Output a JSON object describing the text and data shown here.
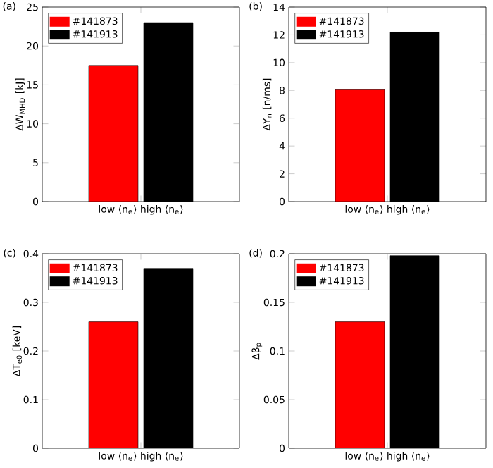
{
  "chart_data": [
    {
      "type": "bar",
      "title": "(a)",
      "ylabel": "ΔW$_{MHD}$ [kJ]",
      "categories": [
        "low ⟨n$_{e}$⟩ high ⟨n$_{e}$⟩"
      ],
      "ylim": [
        0,
        25
      ],
      "yticks": [
        0,
        5,
        10,
        15,
        20,
        25
      ],
      "legend": "top left",
      "series": [
        {
          "name": "#141873",
          "color": "#ff0000",
          "values": [
            17.5
          ]
        },
        {
          "name": "#141913",
          "color": "#000000",
          "values": [
            23
          ]
        }
      ]
    },
    {
      "type": "bar",
      "title": "(b)",
      "ylabel": "ΔY$_{n}$ [n/ms]",
      "categories": [
        "low ⟨n$_{e}$⟩ high ⟨n$_{e}$⟩"
      ],
      "ylim": [
        0,
        14
      ],
      "yticks": [
        0,
        2,
        4,
        6,
        8,
        10,
        12,
        14
      ],
      "legend": "top left",
      "series": [
        {
          "name": "#141873",
          "color": "#ff0000",
          "values": [
            8.1
          ]
        },
        {
          "name": "#141913",
          "color": "#000000",
          "values": [
            12.2
          ]
        }
      ]
    },
    {
      "type": "bar",
      "title": "(c)",
      "ylabel": "ΔT$_{e0}$ [keV]",
      "categories": [
        "low ⟨n$_{e}$⟩ high ⟨n$_{e}$⟩"
      ],
      "ylim": [
        0,
        0.4
      ],
      "yticks": [
        0,
        0.1,
        0.2,
        0.3,
        0.4
      ],
      "legend": "top left",
      "series": [
        {
          "name": "#141873",
          "color": "#ff0000",
          "values": [
            0.26
          ]
        },
        {
          "name": "#141913",
          "color": "#000000",
          "values": [
            0.37
          ]
        }
      ]
    },
    {
      "type": "bar",
      "title": "(d)",
      "ylabel": "Δβ$_{p}$",
      "categories": [
        "low ⟨n$_{e}$⟩ high ⟨n$_{e}$⟩"
      ],
      "ylim": [
        0,
        0.2
      ],
      "yticks": [
        0,
        0.05,
        0.1,
        0.15,
        0.2
      ],
      "legend": "top left",
      "series": [
        {
          "name": "#141873",
          "color": "#ff0000",
          "values": [
            0.13
          ]
        },
        {
          "name": "#141913",
          "color": "#000000",
          "values": [
            0.198
          ]
        }
      ]
    }
  ]
}
